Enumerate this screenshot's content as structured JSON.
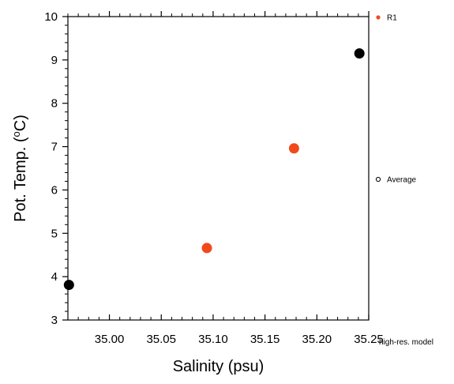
{
  "chart_data": {
    "type": "scatter",
    "xlabel": "Salinity (psu)",
    "ylabel_prefix": "Pot. Temp. (",
    "ylabel_sup": "o",
    "ylabel_suffix": "C)",
    "xlim": [
      34.96,
      35.25
    ],
    "ylim": [
      3,
      10
    ],
    "xticks": [
      "35.00",
      "35.05",
      "35.10",
      "35.15",
      "35.20",
      "35.25"
    ],
    "xtick_values": [
      35.0,
      35.05,
      35.1,
      35.15,
      35.2,
      35.25
    ],
    "yticks": [
      "3",
      "4",
      "5",
      "6",
      "7",
      "8",
      "9",
      "10"
    ],
    "ytick_values": [
      3,
      4,
      5,
      6,
      7,
      8,
      9,
      10
    ],
    "grid": false,
    "legend_placement": "right",
    "series": [
      {
        "name": "R1",
        "color": "#f04a1c",
        "points": [
          [
            35.094,
            4.66
          ],
          [
            35.178,
            6.96
          ]
        ]
      },
      {
        "name": "",
        "color": "#000000",
        "points": [
          [
            34.961,
            3.81
          ],
          [
            35.241,
            9.15
          ]
        ]
      }
    ],
    "legend": [
      {
        "label": "R1",
        "marker": "filled",
        "color": "#f04a1c"
      },
      {
        "label": "Average",
        "marker": "open",
        "color": "#000000"
      },
      {
        "label": "high-res. model",
        "marker": "none",
        "color": "#000000"
      }
    ]
  }
}
